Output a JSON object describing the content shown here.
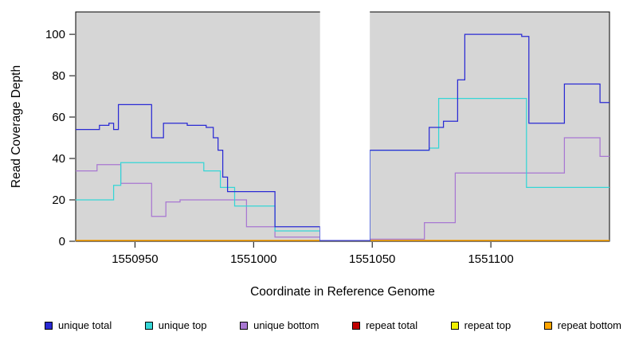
{
  "figure": {
    "x_axis_title": "Coordinate in Reference Genome",
    "y_axis_title": "Read Coverage Depth"
  },
  "chart_data": {
    "type": "line",
    "subtype": "step",
    "title": "",
    "xlabel": "Coordinate in Reference Genome",
    "ylabel": "Read Coverage Depth",
    "xlim": [
      1550925,
      1551150
    ],
    "ylim": [
      0,
      110.8
    ],
    "x_ticks": [
      1550950,
      1551000,
      1551050,
      1551100
    ],
    "y_ticks": [
      0,
      20,
      40,
      60,
      80,
      100
    ],
    "grid": false,
    "panel_background": "#d6d6d6",
    "axis_color": "#000000",
    "masked_region": {
      "x_start": 1551028,
      "x_end": 1551049,
      "color": "#ffffff"
    },
    "series": [
      {
        "name": "repeat total",
        "color": "#c00000",
        "steps": [
          [
            1550925,
            0
          ]
        ]
      },
      {
        "name": "repeat top",
        "color": "#f0f000",
        "steps": [
          [
            1550925,
            0
          ]
        ]
      },
      {
        "name": "repeat bottom",
        "color": "#ffa500",
        "steps": [
          [
            1550925,
            0
          ]
        ]
      },
      {
        "name": "unique bottom",
        "color": "#a877d2",
        "steps": [
          [
            1550925,
            34
          ],
          [
            1550934,
            37
          ],
          [
            1550944,
            28
          ],
          [
            1550957,
            12
          ],
          [
            1550963,
            19
          ],
          [
            1550969,
            20
          ],
          [
            1550995,
            20
          ],
          [
            1550997,
            7
          ],
          [
            1551009,
            2
          ],
          [
            1551028,
            0
          ],
          [
            1551049,
            1
          ],
          [
            1551072,
            9
          ],
          [
            1551085,
            33
          ],
          [
            1551131,
            50
          ],
          [
            1551146,
            41
          ]
        ]
      },
      {
        "name": "unique top",
        "color": "#35d6d6",
        "steps": [
          [
            1550925,
            20
          ],
          [
            1550941,
            27
          ],
          [
            1550944,
            38
          ],
          [
            1550979,
            34
          ],
          [
            1550986,
            26
          ],
          [
            1550992,
            17
          ],
          [
            1551009,
            5
          ],
          [
            1551028,
            0
          ],
          [
            1551049,
            44
          ],
          [
            1551074,
            45
          ],
          [
            1551078,
            69
          ],
          [
            1551115,
            26
          ]
        ]
      },
      {
        "name": "unique total",
        "color": "#2a2ad4",
        "steps": [
          [
            1550925,
            54
          ],
          [
            1550935,
            56
          ],
          [
            1550939,
            57
          ],
          [
            1550941,
            54
          ],
          [
            1550943,
            66
          ],
          [
            1550957,
            50
          ],
          [
            1550962,
            57
          ],
          [
            1550972,
            56
          ],
          [
            1550980,
            55
          ],
          [
            1550983,
            50
          ],
          [
            1550985,
            44
          ],
          [
            1550987,
            31
          ],
          [
            1550989,
            24
          ],
          [
            1551009,
            7
          ],
          [
            1551028,
            0
          ],
          [
            1551049,
            44
          ],
          [
            1551074,
            55
          ],
          [
            1551080,
            58
          ],
          [
            1551086,
            78
          ],
          [
            1551089,
            100
          ],
          [
            1551113,
            99
          ],
          [
            1551116,
            57
          ],
          [
            1551131,
            76
          ],
          [
            1551146,
            67
          ]
        ]
      }
    ],
    "legend_position": "bottom",
    "legend": [
      {
        "label": "unique total",
        "color": "#2a2ad4"
      },
      {
        "label": "unique top",
        "color": "#35d6d6"
      },
      {
        "label": "unique bottom",
        "color": "#a877d2"
      },
      {
        "label": "repeat total",
        "color": "#c00000"
      },
      {
        "label": "repeat top",
        "color": "#f0f000"
      },
      {
        "label": "repeat bottom",
        "color": "#ffa500"
      }
    ]
  }
}
